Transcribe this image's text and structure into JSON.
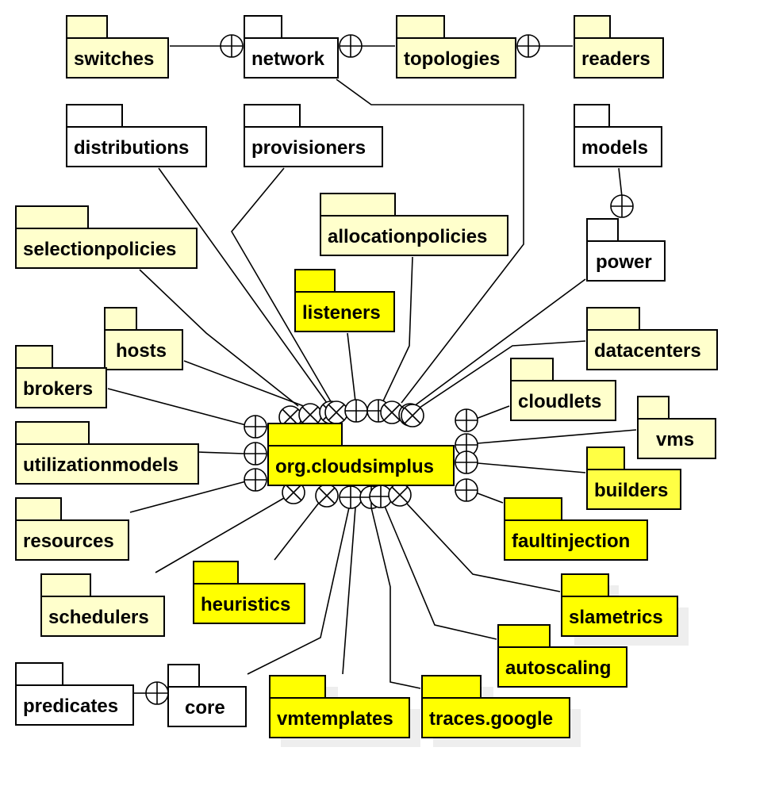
{
  "colors": {
    "white": "#ffffff",
    "pale": "#ffffcc",
    "yellow": "#ffff00",
    "bright": "#ffff44",
    "line": "#000000",
    "shadow": "#eeeeee"
  },
  "packages": {
    "switches": {
      "label": "switches",
      "fill": "pale"
    },
    "network": {
      "label": "network",
      "fill": "white"
    },
    "topologies": {
      "label": "topologies",
      "fill": "pale"
    },
    "readers": {
      "label": "readers",
      "fill": "pale"
    },
    "distributions": {
      "label": "distributions",
      "fill": "white"
    },
    "provisioners": {
      "label": "provisioners",
      "fill": "white"
    },
    "models": {
      "label": "models",
      "fill": "white"
    },
    "selectionpolicies": {
      "label": "selectionpolicies",
      "fill": "pale"
    },
    "allocationpolicies": {
      "label": "allocationpolicies",
      "fill": "pale"
    },
    "power": {
      "label": "power",
      "fill": "white"
    },
    "listeners": {
      "label": "listeners",
      "fill": "yellow"
    },
    "hosts": {
      "label": "hosts",
      "fill": "pale"
    },
    "datacenters": {
      "label": "datacenters",
      "fill": "pale"
    },
    "brokers": {
      "label": "brokers",
      "fill": "pale"
    },
    "cloudlets": {
      "label": "cloudlets",
      "fill": "pale"
    },
    "vms": {
      "label": "vms",
      "fill": "pale"
    },
    "root": {
      "label": "org.cloudsimplus",
      "fill": "yellow"
    },
    "utilizationmodels": {
      "label": "utilizationmodels",
      "fill": "pale"
    },
    "builders": {
      "label": "builders",
      "fill": "bright"
    },
    "resources": {
      "label": "resources",
      "fill": "pale"
    },
    "faultinjection": {
      "label": "faultinjection",
      "fill": "yellow"
    },
    "heuristics": {
      "label": "heuristics",
      "fill": "yellow"
    },
    "schedulers": {
      "label": "schedulers",
      "fill": "pale"
    },
    "slametrics": {
      "label": "slametrics",
      "fill": "yellow"
    },
    "autoscaling": {
      "label": "autoscaling",
      "fill": "yellow"
    },
    "predicates": {
      "label": "predicates",
      "fill": "white"
    },
    "core": {
      "label": "core",
      "fill": "white"
    },
    "vmtemplates": {
      "label": "vmtemplates",
      "fill": "yellow"
    },
    "tracesgoogle": {
      "label": "traces.google",
      "fill": "yellow"
    }
  }
}
